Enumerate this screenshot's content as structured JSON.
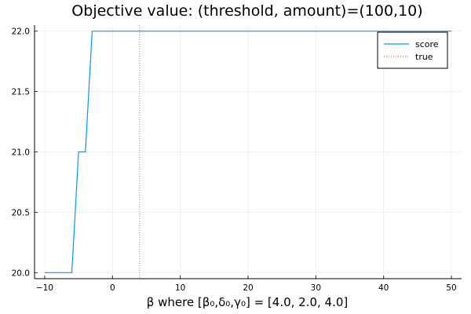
{
  "chart_data": {
    "type": "line",
    "title": "Objective value: (threshold, amount)=(100,10)",
    "xlabel": "β where [β₀,δ₀,γ₀] = [4.0, 2.0, 4.0]",
    "ylabel": "",
    "xlim": [
      -11.5,
      51.5
    ],
    "ylim": [
      19.95,
      22.05
    ],
    "xticks": [
      -10,
      0,
      10,
      20,
      30,
      40,
      50
    ],
    "yticks": [
      20.0,
      20.5,
      21.0,
      21.5,
      22.0
    ],
    "xtick_labels": [
      "−10",
      "0",
      "10",
      "20",
      "30",
      "40",
      "50"
    ],
    "ytick_labels": [
      "20.0",
      "20.5",
      "21.0",
      "21.5",
      "22.0"
    ],
    "grid": true,
    "legend_position": "top-right",
    "series": [
      {
        "name": "score",
        "color": "#009AFA",
        "style": "solid",
        "x": [
          -10,
          -6,
          -5,
          -4,
          -3,
          50
        ],
        "y": [
          20.0,
          20.0,
          21.0,
          21.0,
          22.0,
          22.0
        ]
      },
      {
        "name": "true",
        "color": "#E26F46",
        "style": "dotted",
        "vline": 4.0
      }
    ]
  }
}
